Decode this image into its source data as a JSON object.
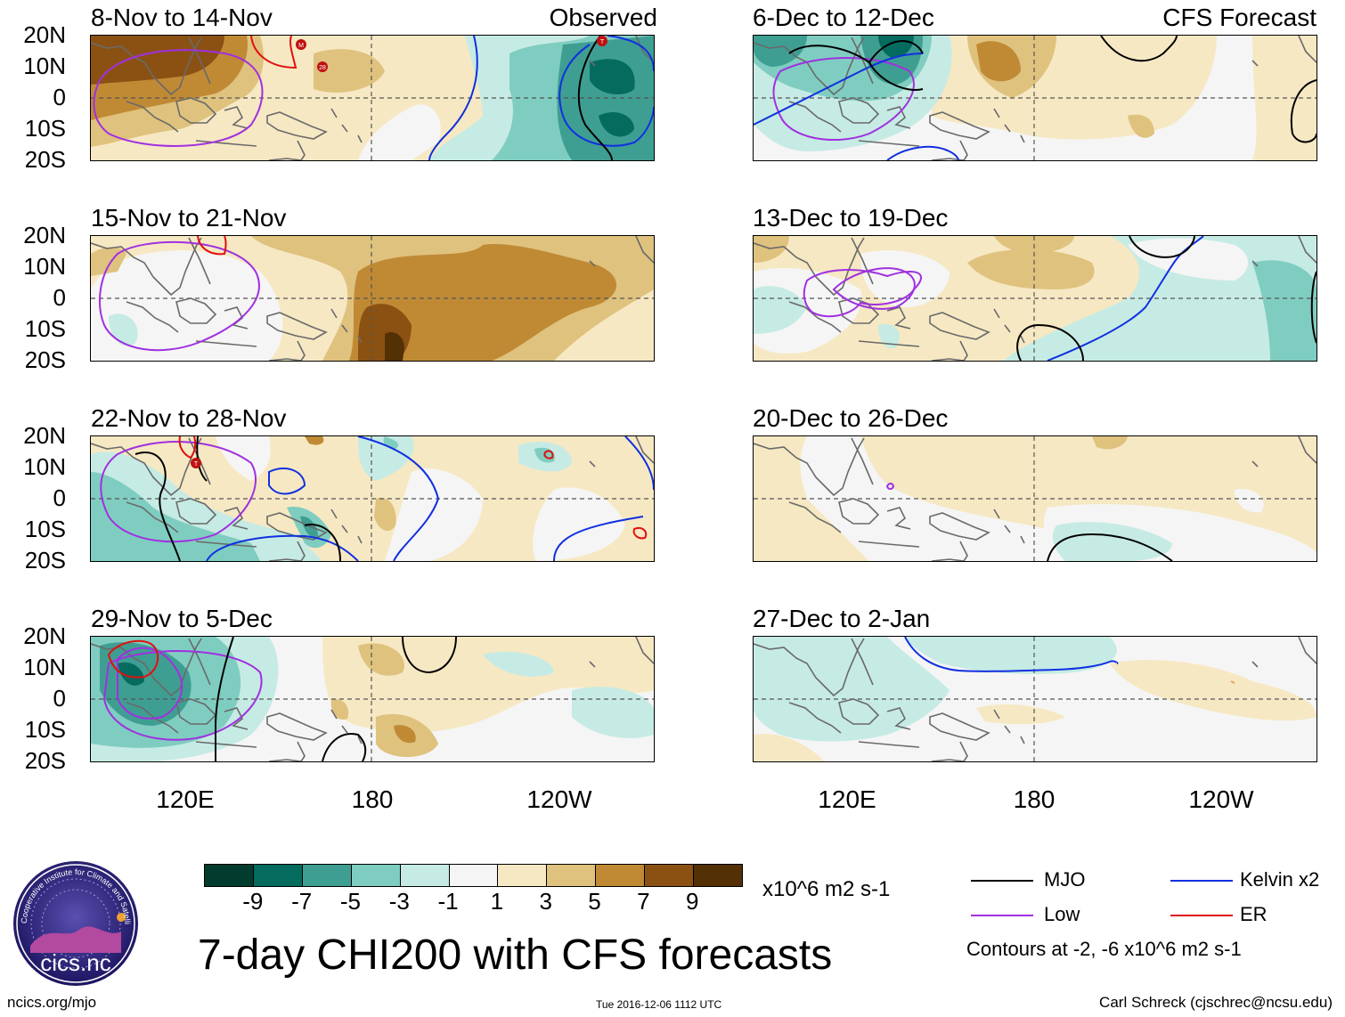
{
  "colors": {
    "neg9": "#023c2f",
    "neg7": "#056b5f",
    "neg5": "#3f9e92",
    "neg3": "#7fcdc0",
    "neg1": "#c6ebe4",
    "zero": "#f5f5f5",
    "pos1": "#f6e8c3",
    "pos3": "#dfc27e",
    "pos5": "#c08a35",
    "pos7": "#8b5113",
    "pos9": "#543005",
    "mjo": "#000000",
    "low": "#a030e0",
    "kelvin": "#1030e0",
    "er": "#e01010"
  },
  "panels": {
    "p1": {
      "title": "8-Nov to 14-Nov",
      "tag": "Observed"
    },
    "p2": {
      "title": "15-Nov to 21-Nov"
    },
    "p3": {
      "title": "22-Nov to 28-Nov"
    },
    "p4": {
      "title": "29-Nov to 5-Dec"
    },
    "p5": {
      "title": "6-Dec to 12-Dec",
      "tag": "CFS Forecast"
    },
    "p6": {
      "title": "13-Dec to 19-Dec"
    },
    "p7": {
      "title": "20-Dec to 26-Dec"
    },
    "p8": {
      "title": "27-Dec to 2-Jan"
    }
  },
  "latitudes": [
    "20N",
    "10N",
    "0",
    "10S",
    "20S"
  ],
  "longitudes": [
    "120E",
    "180",
    "120W"
  ],
  "storm_markers": [
    "M",
    "28",
    "T",
    "T"
  ],
  "colorbar": {
    "labels": [
      "-9",
      "-7",
      "-5",
      "-3",
      "-1",
      "1",
      "3",
      "5",
      "7",
      "9"
    ],
    "units": "x10^6 m2 s-1"
  },
  "legend": {
    "mjo": "MJO",
    "kelvin": "Kelvin x2",
    "low": "Low",
    "er": "ER",
    "contours_note": "Contours at -2, -6 x10^6 m2 s-1"
  },
  "main_title": "7-day CHI200 with CFS forecasts",
  "footer": {
    "url": "ncics.org/mjo",
    "timestamp": "Tue 2016-12-06 1112 UTC",
    "author": "Carl Schreck (cjschrec@ncsu.edu)",
    "logo_text": "cics.nc",
    "logo_ring_text": "Cooperative Institute for Climate and Satellites"
  }
}
